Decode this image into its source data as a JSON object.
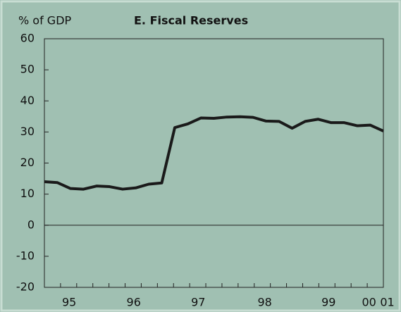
{
  "chart_data": {
    "type": "line",
    "title": "E. Fiscal Reserves",
    "y_label": "% of GDP",
    "x": [
      0,
      1,
      2,
      3,
      4,
      5,
      6,
      7,
      8,
      9,
      10,
      11,
      12,
      13,
      14,
      15,
      16,
      17,
      18,
      19,
      20,
      21,
      22,
      23,
      24,
      25,
      26
    ],
    "series": [
      {
        "name": "Fiscal Reserves",
        "color": "#1a1a1a",
        "values": [
          14,
          13.7,
          11.8,
          11.6,
          12.6,
          12.4,
          11.6,
          12,
          13.2,
          13.6,
          31.4,
          32.6,
          34.5,
          34.4,
          34.8,
          34.9,
          34.7,
          33.5,
          33.4,
          31.2,
          33.4,
          34.1,
          33,
          33,
          32,
          32.2,
          30.3
        ]
      }
    ],
    "xlim": [
      0,
      26
    ],
    "xticks": [
      {
        "value": 1.9,
        "label": "95"
      },
      {
        "value": 6.85,
        "label": "96"
      },
      {
        "value": 11.8,
        "label": "97"
      },
      {
        "value": 16.9,
        "label": "98"
      },
      {
        "value": 21.8,
        "label": "99"
      },
      {
        "value": 24.9,
        "label": "00"
      },
      {
        "value": 26.3,
        "label": "01"
      }
    ],
    "ylim": [
      -20,
      60
    ],
    "yticks": [
      -20,
      -10,
      0,
      10,
      20,
      30,
      40,
      50,
      60
    ]
  }
}
